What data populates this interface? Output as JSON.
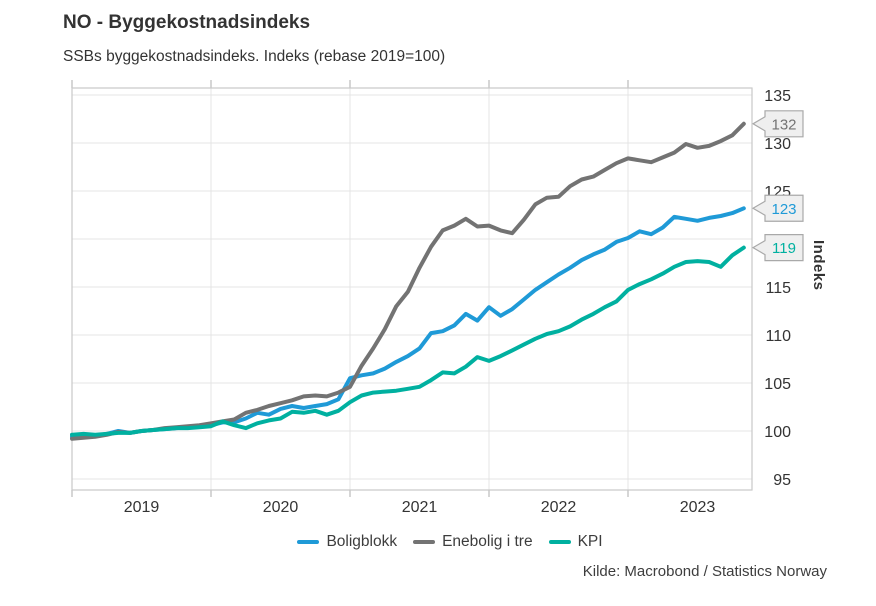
{
  "header": {
    "title": "NO - Byggekostnadsindeks",
    "subtitle": "SSBs byggekostnadsindeks. Indeks (rebase 2019=100)"
  },
  "source_label": "Kilde: Macrobond / Statistics Norway",
  "colors": {
    "boligblokk": "#1f9ad7",
    "enebolig_i_tre": "#737373",
    "kpi": "#00b0a0",
    "grid": "#e4e4e4",
    "plot_border": "#c9c9c9",
    "axis_text": "#333333",
    "callout_bg": "#efefef",
    "callout_border": "#a9a9a9"
  },
  "chart_data": {
    "type": "line",
    "title": "NO - Byggekostnadsindeks",
    "subtitle": "SSBs byggekostnadsindeks. Indeks (rebase 2019=100)",
    "ylabel": "Indeks",
    "xlabel": "",
    "grid": true,
    "legend_position": "bottom",
    "ylim": [
      93.9,
      135.7
    ],
    "y_ticks": [
      95,
      100,
      105,
      110,
      115,
      120,
      125,
      130,
      135
    ],
    "x_tick_labels": [
      "2019",
      "2020",
      "2021",
      "2022",
      "2023"
    ],
    "x": [
      "2019-01",
      "2019-02",
      "2019-03",
      "2019-04",
      "2019-05",
      "2019-06",
      "2019-07",
      "2019-08",
      "2019-09",
      "2019-10",
      "2019-11",
      "2019-12",
      "2020-01",
      "2020-02",
      "2020-03",
      "2020-04",
      "2020-05",
      "2020-06",
      "2020-07",
      "2020-08",
      "2020-09",
      "2020-10",
      "2020-11",
      "2020-12",
      "2021-01",
      "2021-02",
      "2021-03",
      "2021-04",
      "2021-05",
      "2021-06",
      "2021-07",
      "2021-08",
      "2021-09",
      "2021-10",
      "2021-11",
      "2021-12",
      "2022-01",
      "2022-02",
      "2022-03",
      "2022-04",
      "2022-05",
      "2022-06",
      "2022-07",
      "2022-08",
      "2022-09",
      "2022-10",
      "2022-11",
      "2022-12",
      "2023-01",
      "2023-02",
      "2023-03",
      "2023-04",
      "2023-05",
      "2023-06",
      "2023-07",
      "2023-08",
      "2023-09",
      "2023-10",
      "2023-11"
    ],
    "series": [
      {
        "name": "Boligblokk",
        "color": "#1f9ad7",
        "end_label": "123",
        "values": [
          99.4,
          99.5,
          99.5,
          99.7,
          100.0,
          99.8,
          100.0,
          100.1,
          100.2,
          100.3,
          100.4,
          100.5,
          100.6,
          100.9,
          100.9,
          101.3,
          101.9,
          101.7,
          102.3,
          102.6,
          102.4,
          102.6,
          102.8,
          103.3,
          105.5,
          105.8,
          106.0,
          106.5,
          107.2,
          107.8,
          108.6,
          110.2,
          110.4,
          111.0,
          112.2,
          111.5,
          112.9,
          112.0,
          112.7,
          113.7,
          114.7,
          115.5,
          116.3,
          117.0,
          117.8,
          118.4,
          118.9,
          119.7,
          120.1,
          120.8,
          120.5,
          121.2,
          122.3,
          122.1,
          121.9,
          122.2,
          122.4,
          122.7,
          123.2
        ]
      },
      {
        "name": "Enebolig i tre",
        "color": "#737373",
        "end_label": "132",
        "values": [
          99.2,
          99.3,
          99.4,
          99.6,
          99.9,
          99.8,
          100.0,
          100.1,
          100.3,
          100.4,
          100.5,
          100.6,
          100.8,
          101.0,
          101.2,
          101.9,
          102.2,
          102.6,
          102.9,
          103.2,
          103.6,
          103.7,
          103.6,
          104.0,
          104.6,
          106.8,
          108.6,
          110.6,
          113.0,
          114.5,
          117.0,
          119.2,
          120.9,
          121.4,
          122.1,
          121.3,
          121.4,
          120.9,
          120.6,
          122.0,
          123.6,
          124.3,
          124.4,
          125.5,
          126.2,
          126.5,
          127.2,
          127.9,
          128.4,
          128.2,
          128.0,
          128.5,
          129.0,
          129.9,
          129.5,
          129.7,
          130.2,
          130.8,
          132.0
        ]
      },
      {
        "name": "KPI",
        "color": "#00b0a0",
        "end_label": "119",
        "values": [
          99.6,
          99.7,
          99.6,
          99.7,
          99.8,
          99.8,
          100.0,
          100.1,
          100.2,
          100.3,
          100.3,
          100.4,
          100.5,
          101.0,
          100.6,
          100.3,
          100.8,
          101.1,
          101.3,
          102.0,
          101.9,
          102.1,
          101.7,
          102.1,
          103.0,
          103.7,
          104.0,
          104.1,
          104.2,
          104.4,
          104.6,
          105.3,
          106.1,
          106.0,
          106.7,
          107.7,
          107.3,
          107.8,
          108.4,
          109.0,
          109.6,
          110.1,
          110.4,
          110.9,
          111.6,
          112.2,
          112.9,
          113.5,
          114.7,
          115.3,
          115.8,
          116.4,
          117.1,
          117.6,
          117.7,
          117.6,
          117.1,
          118.3,
          119.1
        ]
      }
    ]
  }
}
